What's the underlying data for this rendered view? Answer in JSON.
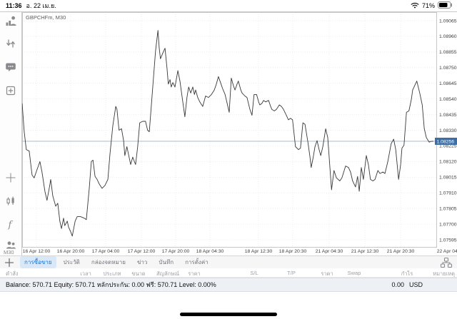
{
  "status_bar": {
    "time": "11:36",
    "date": "อ. 22 เม.ย.",
    "battery_percent": "71%"
  },
  "sidebar": {
    "top_icons": [
      "quotes-icon",
      "trade-icon",
      "chat-icon",
      "new-chart-icon"
    ],
    "bottom_icons": [
      "crosshair-icon",
      "chart-type-icon",
      "indicators-icon",
      "objects-icon"
    ],
    "timeframe_label": "M30"
  },
  "chart": {
    "symbol_label": "GBPCHFm, M30"
  },
  "chart_data": {
    "type": "line",
    "symbol": "GBPCHFm",
    "timeframe": "M30",
    "title": "GBPCHFm, M30",
    "grid": true,
    "legend_position": "none",
    "current_price": "1.08256",
    "y_tick_labels": [
      "1.09065",
      "1.08960",
      "1.08855",
      "1.08750",
      "1.08645",
      "1.08540",
      "1.08435",
      "1.08330",
      "1.08225",
      "1.08120",
      "1.08015",
      "1.07910",
      "1.07805",
      "1.07700",
      "1.07595"
    ],
    "y_range": [
      1.07595,
      1.09065
    ],
    "x_tick_labels": [
      "16 Apr 12:00",
      "16 Apr 20:00",
      "17 Apr 04:00",
      "17 Apr 12:00",
      "17 Apr 20:00",
      "18 Apr 04:30",
      "18 Apr 12:30",
      "18 Apr 20:30",
      "21 Apr 04:30",
      "21 Apr 12:30",
      "21 Apr 20:30",
      "22 Apr 04:30"
    ],
    "series": [
      {
        "name": "GBPCHFm close",
        "points": [
          [
            0,
            1.0851
          ],
          [
            5,
            1.0832
          ],
          [
            10,
            1.082
          ],
          [
            17,
            1.0819
          ],
          [
            24,
            1.0803
          ],
          [
            29,
            1.0801
          ],
          [
            34,
            1.0805
          ],
          [
            43,
            1.0812
          ],
          [
            48,
            1.0805
          ],
          [
            55,
            1.0792
          ],
          [
            60,
            1.0786
          ],
          [
            66,
            1.0795
          ],
          [
            69,
            1.08
          ],
          [
            74,
            1.0789
          ],
          [
            81,
            1.0782
          ],
          [
            86,
            1.0784
          ],
          [
            91,
            1.0772
          ],
          [
            95,
            1.0767
          ],
          [
            100,
            1.0774
          ],
          [
            103,
            1.0769
          ],
          [
            109,
            1.0772
          ],
          [
            112,
            1.0768
          ],
          [
            117,
            1.0765
          ],
          [
            121,
            1.0762
          ],
          [
            128,
            1.0772
          ],
          [
            133,
            1.0775
          ],
          [
            141,
            1.0775
          ],
          [
            150,
            1.0774
          ],
          [
            155,
            1.0773
          ],
          [
            162,
            1.0794
          ],
          [
            167,
            1.0812
          ],
          [
            171,
            1.0813
          ],
          [
            176,
            1.0802
          ],
          [
            181,
            1.08
          ],
          [
            186,
            1.0797
          ],
          [
            193,
            1.0794
          ],
          [
            200,
            1.0796
          ],
          [
            207,
            1.08
          ],
          [
            212,
            1.0817
          ],
          [
            219,
            1.0836
          ],
          [
            226,
            1.0849
          ],
          [
            229,
            1.0847
          ],
          [
            234,
            1.0833
          ],
          [
            240,
            1.0834
          ],
          [
            245,
            1.0826
          ],
          [
            248,
            1.0816
          ],
          [
            253,
            1.0822
          ],
          [
            259,
            1.0814
          ],
          [
            262,
            1.081
          ],
          [
            267,
            1.0815
          ],
          [
            271,
            1.0812
          ],
          [
            274,
            1.081
          ],
          [
            279,
            1.0822
          ],
          [
            284,
            1.0838
          ],
          [
            291,
            1.0839
          ],
          [
            298,
            1.0839
          ],
          [
            303,
            1.0833
          ],
          [
            307,
            1.0832
          ],
          [
            312,
            1.085
          ],
          [
            317,
            1.0868
          ],
          [
            322,
            1.0886
          ],
          [
            328,
            1.09
          ],
          [
            331,
            1.0888
          ],
          [
            334,
            1.0881
          ],
          [
            340,
            1.0885
          ],
          [
            345,
            1.0888
          ],
          [
            350,
            1.0874
          ],
          [
            353,
            1.0864
          ],
          [
            357,
            1.0867
          ],
          [
            360,
            1.0862
          ],
          [
            364,
            1.0865
          ],
          [
            369,
            1.0862
          ],
          [
            376,
            1.0873
          ],
          [
            381,
            1.0866
          ],
          [
            388,
            1.0852
          ],
          [
            393,
            1.0842
          ],
          [
            398,
            1.0855
          ],
          [
            402,
            1.0862
          ],
          [
            407,
            1.0858
          ],
          [
            412,
            1.0862
          ],
          [
            416,
            1.0857
          ],
          [
            419,
            1.086
          ],
          [
            424,
            1.0855
          ],
          [
            429,
            1.0852
          ],
          [
            436,
            1.0849
          ],
          [
            443,
            1.0856
          ],
          [
            450,
            1.0855
          ],
          [
            457,
            1.0857
          ],
          [
            464,
            1.086
          ],
          [
            469,
            1.0864
          ],
          [
            474,
            1.0869
          ],
          [
            479,
            1.0865
          ],
          [
            484,
            1.0861
          ],
          [
            490,
            1.0857
          ],
          [
            495,
            1.0851
          ],
          [
            500,
            1.0845
          ],
          [
            505,
            1.0868
          ],
          [
            510,
            1.0863
          ],
          [
            514,
            1.086
          ],
          [
            519,
            1.0864
          ],
          [
            522,
            1.0866
          ],
          [
            528,
            1.086
          ],
          [
            531,
            1.0858
          ],
          [
            538,
            1.0856
          ],
          [
            543,
            1.0855
          ],
          [
            550,
            1.0847
          ],
          [
            555,
            1.0843
          ],
          [
            560,
            1.0857
          ],
          [
            566,
            1.0857
          ],
          [
            571,
            1.0852
          ],
          [
            574,
            1.085
          ],
          [
            579,
            1.0851
          ],
          [
            583,
            1.0853
          ],
          [
            588,
            1.0852
          ],
          [
            595,
            1.0853
          ],
          [
            600,
            1.0849
          ],
          [
            603,
            1.0847
          ],
          [
            609,
            1.0846
          ],
          [
            614,
            1.0847
          ],
          [
            621,
            1.085
          ],
          [
            626,
            1.0849
          ],
          [
            631,
            1.0847
          ],
          [
            638,
            1.0843
          ],
          [
            643,
            1.084
          ],
          [
            648,
            1.0841
          ],
          [
            653,
            1.084
          ],
          [
            660,
            1.0822
          ],
          [
            667,
            1.082
          ],
          [
            672,
            1.0821
          ],
          [
            678,
            1.0838
          ],
          [
            683,
            1.0837
          ],
          [
            690,
            1.0825
          ],
          [
            695,
            1.0815
          ],
          [
            698,
            1.0808
          ],
          [
            703,
            1.0815
          ],
          [
            707,
            1.0822
          ],
          [
            712,
            1.0826
          ],
          [
            717,
            1.082
          ],
          [
            721,
            1.0816
          ],
          [
            726,
            1.0822
          ],
          [
            733,
            1.0834
          ],
          [
            738,
            1.0828
          ],
          [
            747,
            1.0793
          ],
          [
            753,
            1.0806
          ],
          [
            759,
            1.0801
          ],
          [
            767,
            1.0799
          ],
          [
            772,
            1.0801
          ],
          [
            781,
            1.0809
          ],
          [
            788,
            1.0808
          ],
          [
            793,
            1.0805
          ],
          [
            798,
            1.0799
          ],
          [
            805,
            1.0795
          ],
          [
            810,
            1.0802
          ],
          [
            814,
            1.0792
          ],
          [
            819,
            1.0808
          ],
          [
            824,
            1.08
          ],
          [
            831,
            1.0816
          ],
          [
            836,
            1.081
          ],
          [
            841,
            1.08
          ],
          [
            847,
            1.0799
          ],
          [
            852,
            1.08
          ],
          [
            859,
            1.0806
          ],
          [
            864,
            1.0804
          ],
          [
            871,
            1.0805
          ],
          [
            876,
            1.0804
          ],
          [
            883,
            1.0812
          ],
          [
            891,
            1.0824
          ],
          [
            897,
            1.0827
          ],
          [
            902,
            1.082
          ],
          [
            909,
            1.08
          ],
          [
            914,
            1.081
          ],
          [
            917,
            1.0821
          ],
          [
            922,
            1.0823
          ],
          [
            928,
            1.0845
          ],
          [
            934,
            1.0846
          ],
          [
            940,
            1.0854
          ],
          [
            943,
            1.086
          ],
          [
            948,
            1.0863
          ],
          [
            953,
            1.0866
          ],
          [
            960,
            1.0858
          ],
          [
            966,
            1.085
          ],
          [
            971,
            1.0834
          ],
          [
            976,
            1.0828
          ],
          [
            983,
            1.0825
          ],
          [
            988,
            1.08256
          ],
          [
            993,
            1.08256
          ]
        ]
      }
    ]
  },
  "tab_bar": {
    "tabs": [
      {
        "label": "การซื้อขาย",
        "active": true
      },
      {
        "label": "ประวัติ"
      },
      {
        "label": "กล่องจดหมาย"
      },
      {
        "label": "ข่าว"
      },
      {
        "label": "บันทึก"
      },
      {
        "label": "การตั้งค่า"
      }
    ]
  },
  "trade_table": {
    "headers": [
      "คำสั่ง",
      "เวลา",
      "ประเภท",
      "ขนาด",
      "สัญลักษณ์",
      "ราคา",
      "S/L",
      "T/P",
      "ราคา",
      "Swap",
      "กำไร",
      "หมายเหตุ"
    ]
  },
  "account": {
    "summary": "Balance: 570.71 Equity: 570.71 หลักประกัน: 0.00 ฟรี: 570.71 Level: 0.00%",
    "profit": "0.00",
    "currency": "USD"
  }
}
